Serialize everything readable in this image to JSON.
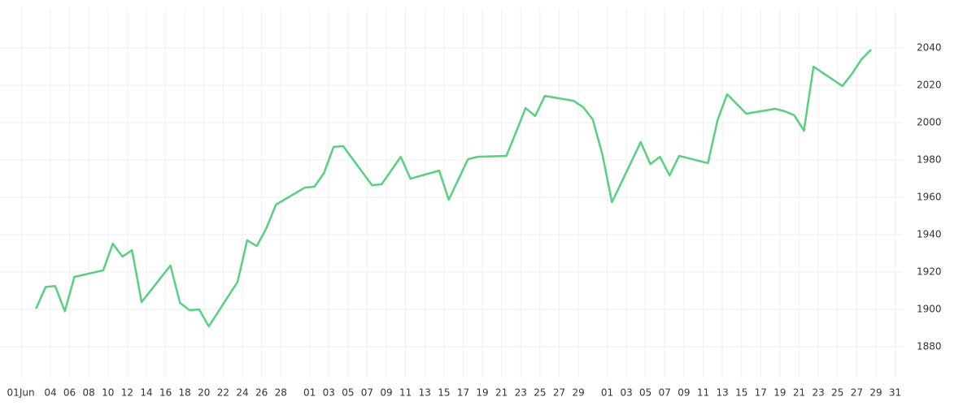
{
  "chart_data": {
    "type": "line",
    "x": [
      2.5,
      3.5,
      4.5,
      5.5,
      6.5,
      9.5,
      10.5,
      11.5,
      12.5,
      13.5,
      16.5,
      17.5,
      18.5,
      19.5,
      20.5,
      23.5,
      24.5,
      25.5,
      26.5,
      27.5,
      30.5,
      31.5,
      32.5,
      33.5,
      34.5,
      37.5,
      38.5,
      40.5,
      41.5,
      44.5,
      45.5,
      47.5,
      48.5,
      51.5,
      52.5,
      53.5,
      54.5,
      55.5,
      58.5,
      59.5,
      60.5,
      61.5,
      62.5,
      65.5,
      66.5,
      67.5,
      68.5,
      69.5,
      72.5,
      73.5,
      74.5,
      75.5,
      76.5,
      79.5,
      80.5,
      81.5,
      82.5,
      83.5,
      86.5,
      87.5,
      88.5,
      89.5
    ],
    "series": [
      {
        "color": "#55d27f",
        "values": [
          1900.4,
          1912,
          1912.5,
          1899,
          1917.4,
          1920.9,
          1935.2,
          1928.3,
          1931.7,
          1903.9,
          1923.5,
          1903.5,
          1899.6,
          1900,
          1890.9,
          1914.8,
          1937,
          1933.9,
          1943.5,
          1956.1,
          1965.2,
          1965.7,
          1973,
          1987,
          1987.4,
          1966.5,
          1967,
          1981.7,
          1970,
          1974.3,
          1958.7,
          1980.4,
          1981.7,
          1982.2,
          1994.8,
          2007.8,
          2003.5,
          2014.3,
          2011.7,
          2008.3,
          2001.7,
          1983,
          1957.4,
          1989.6,
          1977.8,
          1981.7,
          1971.7,
          1982.2,
          1978.3,
          2001.3,
          2015.2,
          2010,
          2004.8,
          2007.4,
          2006.1,
          2003.9,
          1995.7,
          2030,
          2019.6,
          2026.1,
          2033.9,
          2039.1
        ]
      }
    ],
    "xlim": [
      -1.25,
      92.8
    ],
    "xticks": [
      {
        "value": 1,
        "label": "01Jun"
      },
      {
        "value": 4,
        "label": "04"
      },
      {
        "value": 6,
        "label": "06"
      },
      {
        "value": 8,
        "label": "08"
      },
      {
        "value": 10,
        "label": "10"
      },
      {
        "value": 12,
        "label": "12"
      },
      {
        "value": 14,
        "label": "14"
      },
      {
        "value": 16,
        "label": "16"
      },
      {
        "value": 18,
        "label": "18"
      },
      {
        "value": 20,
        "label": "20"
      },
      {
        "value": 22,
        "label": "22"
      },
      {
        "value": 24,
        "label": "24"
      },
      {
        "value": 26,
        "label": "26"
      },
      {
        "value": 28,
        "label": "28"
      },
      {
        "value": 31,
        "label": "01"
      },
      {
        "value": 33,
        "label": "03"
      },
      {
        "value": 35,
        "label": "05"
      },
      {
        "value": 37,
        "label": "07"
      },
      {
        "value": 39,
        "label": "09"
      },
      {
        "value": 41,
        "label": "11"
      },
      {
        "value": 43,
        "label": "13"
      },
      {
        "value": 45,
        "label": "15"
      },
      {
        "value": 47,
        "label": "17"
      },
      {
        "value": 49,
        "label": "19"
      },
      {
        "value": 51,
        "label": "21"
      },
      {
        "value": 53,
        "label": "23"
      },
      {
        "value": 55,
        "label": "25"
      },
      {
        "value": 57,
        "label": "27"
      },
      {
        "value": 59,
        "label": "29"
      },
      {
        "value": 62,
        "label": "01"
      },
      {
        "value": 64,
        "label": "03"
      },
      {
        "value": 66,
        "label": "05"
      },
      {
        "value": 68,
        "label": "07"
      },
      {
        "value": 70,
        "label": "09"
      },
      {
        "value": 72,
        "label": "11"
      },
      {
        "value": 74,
        "label": "13"
      },
      {
        "value": 76,
        "label": "15"
      },
      {
        "value": 78,
        "label": "17"
      },
      {
        "value": 80,
        "label": "19"
      },
      {
        "value": 82,
        "label": "21"
      },
      {
        "value": 84,
        "label": "23"
      },
      {
        "value": 86,
        "label": "25"
      },
      {
        "value": 88,
        "label": "27"
      },
      {
        "value": 90,
        "label": "29"
      },
      {
        "value": 92,
        "label": "31"
      }
    ],
    "ylim": [
      1863.5,
      2061.3
    ],
    "yticks": [
      1880,
      1900,
      1920,
      1940,
      1960,
      1980,
      2000,
      2020,
      2040
    ],
    "grid": true
  }
}
